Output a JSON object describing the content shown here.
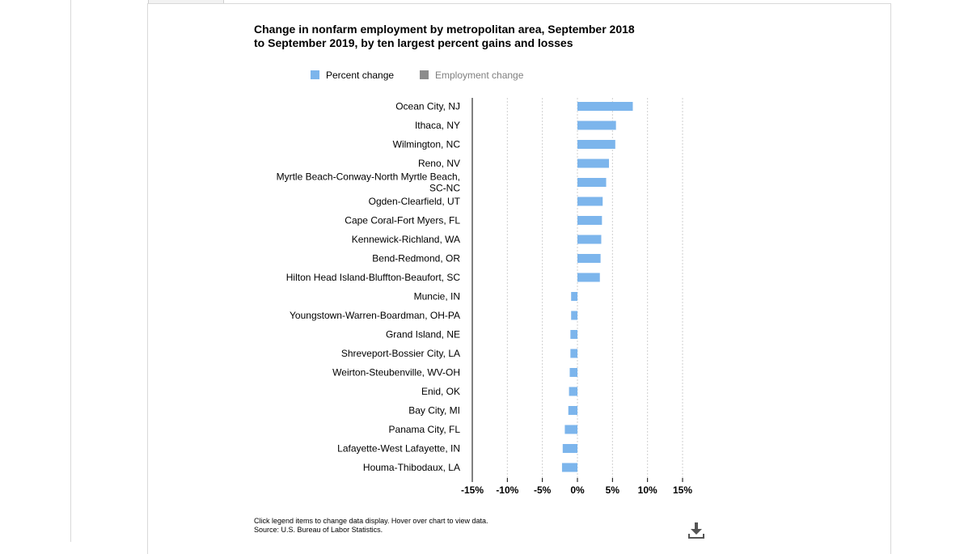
{
  "colors": {
    "percent_bar": "#7cb5ec",
    "employment_swatch": "#8c8c8c",
    "axis": "#000000",
    "grid": "#cfcfcf"
  },
  "legend": {
    "percent_label": "Percent change",
    "employment_label": "Employment change"
  },
  "footnote": {
    "line1": "Click legend items to change data display. Hover over chart to view data.",
    "line2": "Source: U.S. Bureau of Labor Statistics."
  },
  "icons": {
    "download": "download-icon"
  },
  "chart_data": {
    "type": "bar",
    "orientation": "horizontal",
    "title": "Change in nonfarm employment by metropolitan area, September 2018 to September 2019, by ten largest percent gains and losses",
    "xlabel": "",
    "ylabel": "",
    "xlim": [
      -15,
      15
    ],
    "x_ticks": [
      -15,
      -10,
      -5,
      0,
      5,
      10,
      15
    ],
    "x_tick_labels": [
      "-15%",
      "-10%",
      "-5%",
      "0%",
      "5%",
      "10%",
      "15%"
    ],
    "grid": "vertical dotted",
    "legend_position": "top",
    "categories": [
      [
        "Ocean City, NJ"
      ],
      [
        "Ithaca, NY"
      ],
      [
        "Wilmington, NC"
      ],
      [
        "Reno, NV"
      ],
      [
        "Myrtle Beach-Conway-North Myrtle Beach,",
        "SC-NC"
      ],
      [
        "Ogden-Clearfield, UT"
      ],
      [
        "Cape Coral-Fort Myers, FL"
      ],
      [
        "Kennewick-Richland, WA"
      ],
      [
        "Bend-Redmond, OR"
      ],
      [
        "Hilton Head Island-Bluffton-Beaufort, SC"
      ],
      [
        "Muncie, IN"
      ],
      [
        "Youngstown-Warren-Boardman, OH-PA"
      ],
      [
        "Grand Island, NE"
      ],
      [
        "Shreveport-Bossier City, LA"
      ],
      [
        "Weirton-Steubenville, WV-OH"
      ],
      [
        "Enid, OK"
      ],
      [
        "Bay City, MI"
      ],
      [
        "Panama City, FL"
      ],
      [
        "Lafayette-West Lafayette, IN"
      ],
      [
        "Houma-Thibodaux, LA"
      ]
    ],
    "series": [
      {
        "name": "Percent change",
        "values": [
          7.9,
          5.5,
          5.4,
          4.5,
          4.1,
          3.6,
          3.5,
          3.4,
          3.3,
          3.2,
          -0.9,
          -0.9,
          -1.0,
          -1.0,
          -1.1,
          -1.2,
          -1.3,
          -1.8,
          -2.1,
          -2.2
        ]
      }
    ]
  }
}
